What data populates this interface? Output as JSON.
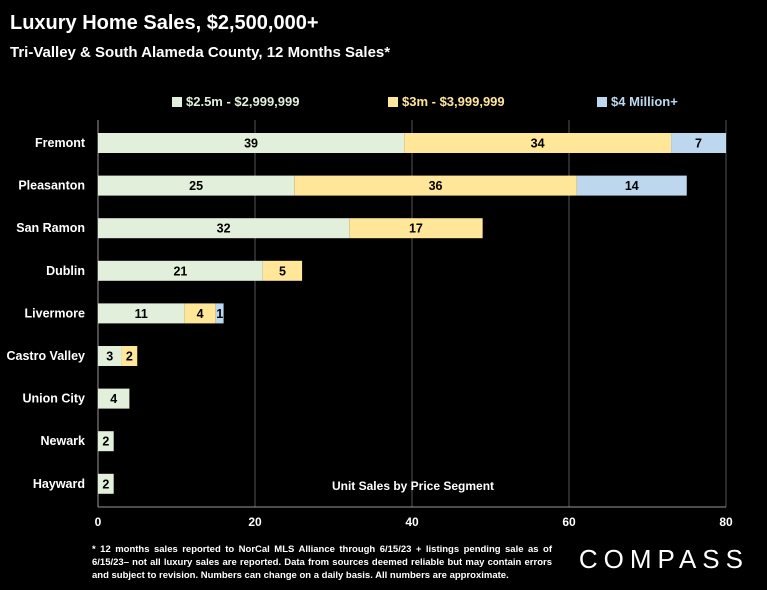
{
  "title": "Luxury Home Sales, $2,500,000+",
  "subtitle": "Tri-Valley & South Alameda County, 12 Months Sales*",
  "footnote": "* 12 months sales reported to NorCal MLS Alliance through 6/15/23 + listings pending sale as of 6/15/23– not all luxury sales are reported. Data from sources deemed reliable but may contain errors and subject to revision. Numbers can change on a daily basis. All numbers are approximate.",
  "logo": "COMPASS",
  "colors": {
    "background": "#000000",
    "series1": "#e2efda",
    "series2": "#ffe699",
    "series3": "#bdd7ee"
  },
  "chart_data": {
    "type": "bar",
    "orientation": "horizontal",
    "stacked": true,
    "categories": [
      "Fremont",
      "Pleasanton",
      "San Ramon",
      "Dublin",
      "Livermore",
      "Castro Valley",
      "Union City",
      "Newark",
      "Hayward"
    ],
    "series": [
      {
        "name": "$2.5m - $2,999,999",
        "color": "#e2efda",
        "values": [
          39,
          25,
          32,
          21,
          11,
          3,
          4,
          2,
          2
        ]
      },
      {
        "name": "$3m - $3,999,999",
        "color": "#ffe699",
        "values": [
          34,
          36,
          17,
          5,
          4,
          2,
          0,
          0,
          0
        ]
      },
      {
        "name": "$4 Million+",
        "color": "#bdd7ee",
        "values": [
          7,
          14,
          0,
          0,
          1,
          0,
          0,
          0,
          0
        ]
      }
    ],
    "xlim": [
      0,
      80
    ],
    "xticks": [
      0,
      20,
      40,
      60,
      80
    ],
    "annotation": "Unit Sales by Price Segment",
    "grid": "vertical",
    "legend": "top"
  }
}
